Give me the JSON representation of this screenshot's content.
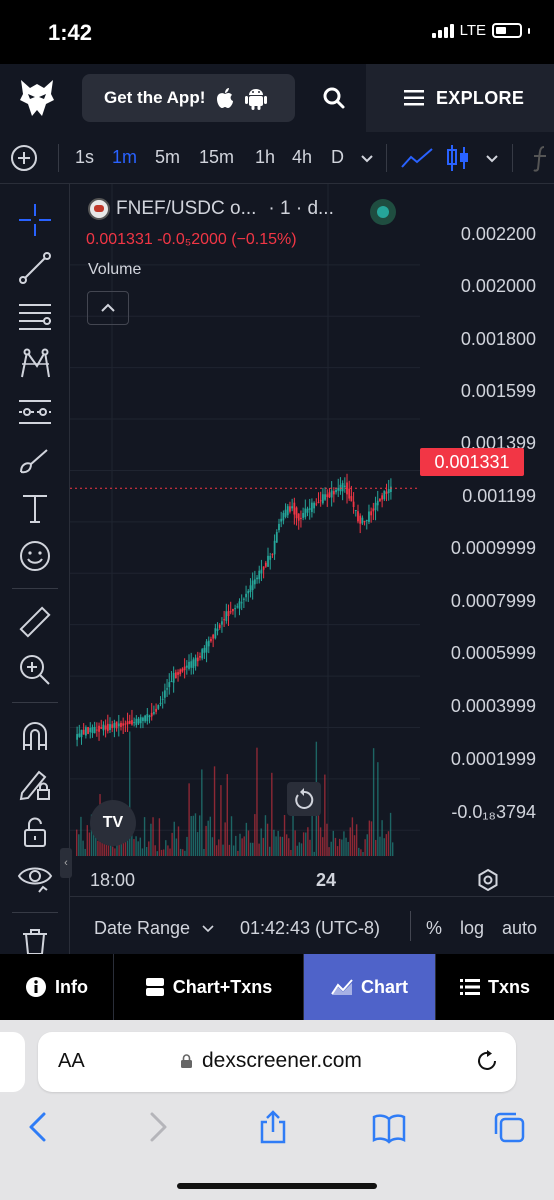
{
  "status_bar": {
    "time": "1:42",
    "network": "LTE"
  },
  "header": {
    "get_app_label": "Get the App!",
    "explore_label": "EXPLORE",
    "icons": [
      "eagle-logo-icon",
      "apple-icon",
      "android-icon",
      "search-icon",
      "menu-icon"
    ]
  },
  "toolbar": {
    "timeframes": [
      "1s",
      "1m",
      "5m",
      "15m",
      "1h",
      "4h",
      "D"
    ],
    "active_timeframe": "1m",
    "icons": [
      "add-symbol-icon",
      "chevron-down-icon",
      "line-chart-icon",
      "candlestick-icon",
      "chevron-down-icon",
      "indicators-icon"
    ]
  },
  "drawing_tools": [
    "crosshair-icon",
    "trend-line-icon",
    "fib-icon",
    "pattern-icon",
    "prediction-icon",
    "brush-icon",
    "text-icon",
    "emoji-icon",
    "ruler-icon",
    "zoom-in-icon",
    "magnet-icon",
    "lock-drawing-icon",
    "unlock-icon",
    "eye-icon",
    "trash-icon"
  ],
  "legend": {
    "pair": "FNEF/USDC o...",
    "interval": "· 1 · d...",
    "price_change": "0.001331  -0.0₅2000 (−0.15%)",
    "volume_label": "Volume"
  },
  "price_axis": {
    "labels": [
      "0.002200",
      "0.002000",
      "0.001800",
      "0.001599",
      "0.001399",
      "0.001199",
      "0.0009999",
      "0.0007999",
      "0.0005999",
      "0.0003999",
      "0.0001999",
      "-0.0₁₈3794"
    ],
    "last_price": "0.001331"
  },
  "time_axis": {
    "labels": [
      "18:00",
      "24"
    ]
  },
  "bottom_controls": {
    "date_range": "Date Range",
    "clock": "01:42:43 (UTC-8)",
    "percent": "%",
    "log": "log",
    "auto": "auto"
  },
  "tabs": [
    {
      "label": "Info",
      "icon": "info-icon"
    },
    {
      "label": "Chart+Txns",
      "icon": "split-view-icon"
    },
    {
      "label": "Chart",
      "icon": "chart-icon",
      "active": true
    },
    {
      "label": "Txns",
      "icon": "list-icon"
    }
  ],
  "browser": {
    "aa_label": "AA",
    "url": "dexscreener.com",
    "icons": [
      "lock-icon",
      "reload-icon",
      "back-icon",
      "forward-icon",
      "share-icon",
      "bookmarks-icon",
      "tabs-icon"
    ]
  },
  "colors": {
    "up": "#26a69a",
    "down": "#f23645",
    "accent": "#2962ff",
    "active_tab": "#4f63c9",
    "background": "#131722"
  },
  "chart_data": {
    "type": "candlestick",
    "pair": "FNEF/USDC",
    "x_range": [
      "17:30",
      "24:50"
    ],
    "x_ticks": [
      "18:00",
      "24"
    ],
    "ylim": [
      -0.0001,
      0.00232
    ],
    "last_price": 0.001331,
    "grid": true,
    "close_series": [
      0.00036,
      0.00038,
      0.00039,
      0.00039,
      0.0004,
      0.0004,
      0.00041,
      0.00041,
      0.00042,
      0.00042,
      0.00043,
      0.00044,
      0.00046,
      0.0005,
      0.00056,
      0.0006,
      0.00062,
      0.00064,
      0.00065,
      0.00068,
      0.00072,
      0.00076,
      0.0008,
      0.00084,
      0.00086,
      0.00088,
      0.00092,
      0.00096,
      0.001,
      0.00104,
      0.00108,
      0.0012,
      0.00124,
      0.00126,
      0.00121,
      0.00124,
      0.00126,
      0.00128,
      0.0013,
      0.00131,
      0.00133,
      0.00134,
      0.00128,
      0.00121,
      0.0012,
      0.00124,
      0.00128,
      0.00131,
      0.00133
    ]
  }
}
